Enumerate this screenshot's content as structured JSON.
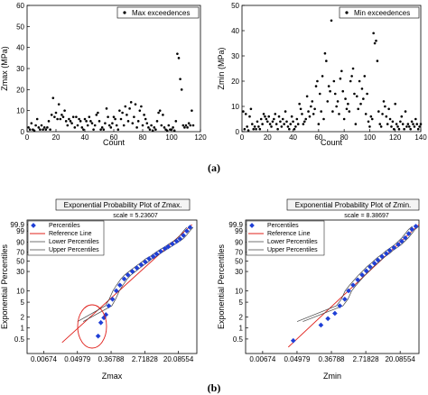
{
  "panel_labels": {
    "a": "(a)",
    "b": "(b)"
  },
  "colors": {
    "points_top": "#000000",
    "percentile_marker": "#1f3fd6",
    "reference_line": "#e0201b",
    "bound_line": "#444444",
    "ellipse": "#e0201b"
  },
  "chart_data": [
    {
      "id": "max-scatter",
      "type": "scatter",
      "xlabel": "Count",
      "ylabel": "Zmax (MPa)",
      "xlim": [
        0,
        120
      ],
      "ylim": [
        0,
        60
      ],
      "xticks": [
        0,
        20,
        40,
        60,
        80,
        100,
        120
      ],
      "yticks": [
        0,
        10,
        20,
        30,
        40,
        50,
        60
      ],
      "legend": "Max exceedences",
      "legend_position": "top-right",
      "series": [
        {
          "name": "Max exceedences",
          "x": [
            1,
            2,
            3,
            4,
            5,
            6,
            7,
            8,
            9,
            10,
            11,
            12,
            13,
            14,
            15,
            16,
            17,
            18,
            19,
            20,
            21,
            22,
            23,
            24,
            25,
            26,
            27,
            28,
            29,
            30,
            31,
            32,
            33,
            34,
            35,
            36,
            37,
            38,
            39,
            40,
            41,
            42,
            43,
            44,
            45,
            46,
            47,
            48,
            49,
            50,
            51,
            52,
            53,
            54,
            55,
            56,
            57,
            58,
            59,
            60,
            61,
            62,
            63,
            64,
            65,
            66,
            67,
            68,
            69,
            70,
            71,
            72,
            73,
            74,
            75,
            76,
            77,
            78,
            79,
            80,
            81,
            82,
            83,
            84,
            85,
            86,
            87,
            88,
            89,
            90,
            91,
            92,
            93,
            94,
            95,
            96,
            97,
            98,
            99,
            100,
            101,
            102,
            103,
            104,
            105,
            106,
            107,
            108,
            109,
            110,
            111,
            112,
            113,
            114,
            115
          ],
          "y": [
            2,
            1,
            4,
            1,
            0.5,
            3,
            6,
            2,
            1,
            3,
            1,
            2,
            1,
            2,
            5,
            1,
            8,
            16,
            7,
            9,
            6,
            13,
            6,
            8,
            7,
            10,
            5,
            3,
            6,
            5,
            4,
            7,
            2,
            7,
            3,
            6,
            5,
            2,
            1,
            6,
            5,
            3,
            7,
            5,
            4,
            1,
            3,
            8,
            9,
            5,
            1,
            2,
            1,
            4,
            11,
            7,
            3,
            2,
            4,
            7,
            6,
            3,
            1,
            10,
            6,
            9,
            3,
            12,
            8,
            5,
            11,
            14,
            4,
            7,
            13,
            2,
            5,
            10,
            12,
            3,
            8,
            6,
            4,
            2,
            1,
            3,
            0.5,
            2,
            1,
            5,
            9,
            10,
            3,
            8,
            2,
            1,
            0.5,
            3,
            1,
            1,
            2,
            0.5,
            5,
            37,
            35,
            25,
            20,
            3,
            2,
            3,
            2,
            4,
            3,
            10,
            3
          ]
        }
      ]
    },
    {
      "id": "min-scatter",
      "type": "scatter",
      "xlabel": "Count",
      "ylabel": "Zmin (MPa)",
      "xlim": [
        0,
        140
      ],
      "ylim": [
        0,
        50
      ],
      "xticks": [
        0,
        20,
        40,
        60,
        80,
        100,
        120,
        140
      ],
      "yticks": [
        0,
        10,
        20,
        30,
        40,
        50
      ],
      "legend": "Min exceedences",
      "legend_position": "top-right",
      "series": [
        {
          "name": "Min exceedences",
          "x": [
            1,
            2,
            3,
            4,
            5,
            6,
            7,
            8,
            9,
            10,
            11,
            12,
            13,
            14,
            15,
            16,
            17,
            18,
            19,
            20,
            21,
            22,
            23,
            24,
            25,
            26,
            27,
            28,
            29,
            30,
            31,
            32,
            33,
            34,
            35,
            36,
            37,
            38,
            39,
            40,
            41,
            42,
            43,
            44,
            45,
            46,
            47,
            48,
            49,
            50,
            51,
            52,
            53,
            54,
            55,
            56,
            57,
            58,
            59,
            60,
            61,
            62,
            63,
            64,
            65,
            66,
            67,
            68,
            69,
            70,
            71,
            72,
            73,
            74,
            75,
            76,
            77,
            78,
            79,
            80,
            81,
            82,
            83,
            84,
            85,
            86,
            87,
            88,
            89,
            90,
            91,
            92,
            93,
            94,
            95,
            96,
            97,
            98,
            99,
            100,
            101,
            102,
            103,
            104,
            105,
            106,
            107,
            108,
            109,
            110,
            111,
            112,
            113,
            114,
            115,
            116,
            117,
            118,
            119,
            120,
            121,
            122,
            123,
            124,
            125,
            126,
            127,
            128,
            129,
            130,
            131,
            132,
            133,
            134,
            135,
            136,
            137,
            138,
            139,
            140
          ],
          "y": [
            8,
            1,
            7,
            2,
            0.5,
            6,
            9,
            3,
            1,
            2,
            1,
            4,
            2,
            1,
            5,
            3,
            7,
            6,
            5,
            4,
            6,
            3,
            2,
            4,
            5,
            7,
            3,
            1,
            6,
            4,
            2,
            5,
            3,
            8,
            4,
            2,
            1,
            3,
            6,
            4,
            1,
            2,
            5,
            3,
            11,
            9,
            7,
            3,
            4,
            5,
            14,
            8,
            6,
            10,
            12,
            7,
            9,
            18,
            20,
            3,
            15,
            8,
            22,
            5,
            31,
            28,
            12,
            18,
            16,
            44,
            8,
            20,
            15,
            10,
            12,
            7,
            21,
            24,
            16,
            5,
            13,
            9,
            11,
            8,
            20,
            22,
            25,
            15,
            3,
            14,
            9,
            20,
            11,
            17,
            13,
            22,
            7,
            15,
            4,
            2,
            6,
            5,
            39,
            35,
            36,
            28,
            8,
            3,
            2,
            7,
            12,
            10,
            6,
            3,
            9,
            5,
            2,
            4,
            1,
            11,
            3,
            2,
            1,
            4,
            6,
            3,
            1,
            8,
            2,
            3,
            2,
            1,
            4,
            3,
            2,
            5,
            3,
            1,
            2,
            3
          ]
        }
      ]
    },
    {
      "id": "max-probability",
      "type": "line",
      "title": "Exponential Probability Plot of Zmax.",
      "subtitle": "scale = 5.23607",
      "xlabel": "Zmax",
      "ylabel": "Exponential Percentiles",
      "x_scale": "log",
      "xticks": [
        "0.00674",
        "0.04979",
        "0.36788",
        "2.71828",
        "20.08554"
      ],
      "yticks": [
        "0.5",
        "1",
        "2",
        "5",
        "10",
        "30",
        "50",
        "70",
        "90",
        "99",
        "99.9"
      ],
      "legend": [
        "Percentiles",
        "Reference Line",
        "Lower Percentiles",
        "Upper Percentiles"
      ],
      "legend_position": "top-left",
      "percentiles": {
        "x": [
          0.17,
          0.2,
          0.24,
          0.27,
          0.32,
          0.4,
          0.5,
          0.62,
          0.8,
          1.0,
          1.3,
          1.7,
          2.2,
          2.8,
          3.5,
          4.5,
          5.5,
          7,
          9,
          11,
          14,
          18,
          22,
          27,
          33,
          40
        ],
        "y": [
          0.6,
          1.4,
          1.9,
          2.3,
          4,
          6,
          10,
          14,
          20,
          25,
          30,
          36,
          42,
          48,
          55,
          60,
          66,
          72,
          78,
          82,
          87,
          91,
          94,
          97,
          99,
          99.7
        ]
      },
      "reference_line": {
        "x": [
          0.02,
          45
        ],
        "y": [
          0.4,
          99.9
        ]
      },
      "annotation": "ellipse around lowest percentiles"
    },
    {
      "id": "min-probability",
      "type": "line",
      "title": "Exponential Probability Plot of Zmin.",
      "subtitle": "scale = 8.38697",
      "xlabel": "Zmin",
      "ylabel": "Exponential Percentiles",
      "x_scale": "log",
      "xticks": [
        "0.00674",
        "0.04979",
        "0.36788",
        "2.71828",
        "20.08554"
      ],
      "yticks": [
        "0.5",
        "1",
        "2",
        "5",
        "10",
        "30",
        "50",
        "70",
        "90",
        "99",
        "99.9"
      ],
      "legend": [
        "Percentiles",
        "Reference Line",
        "Lower Percentiles",
        "Upper Percentiles"
      ],
      "legend_position": "top-left",
      "percentiles": {
        "x": [
          0.04,
          0.2,
          0.3,
          0.45,
          0.6,
          0.8,
          1.0,
          1.3,
          1.7,
          2.2,
          2.8,
          3.5,
          4.5,
          5.5,
          7,
          9,
          11,
          14,
          18,
          22,
          27,
          33,
          40,
          50
        ],
        "y": [
          0.45,
          1.2,
          1.8,
          2.5,
          4,
          6,
          10,
          14,
          19,
          25,
          31,
          38,
          45,
          52,
          60,
          67,
          74,
          80,
          86,
          91,
          95,
          98,
          99.4,
          99.8
        ]
      },
      "reference_line": {
        "x": [
          0.03,
          60
        ],
        "y": [
          0.3,
          99.9
        ]
      }
    }
  ]
}
